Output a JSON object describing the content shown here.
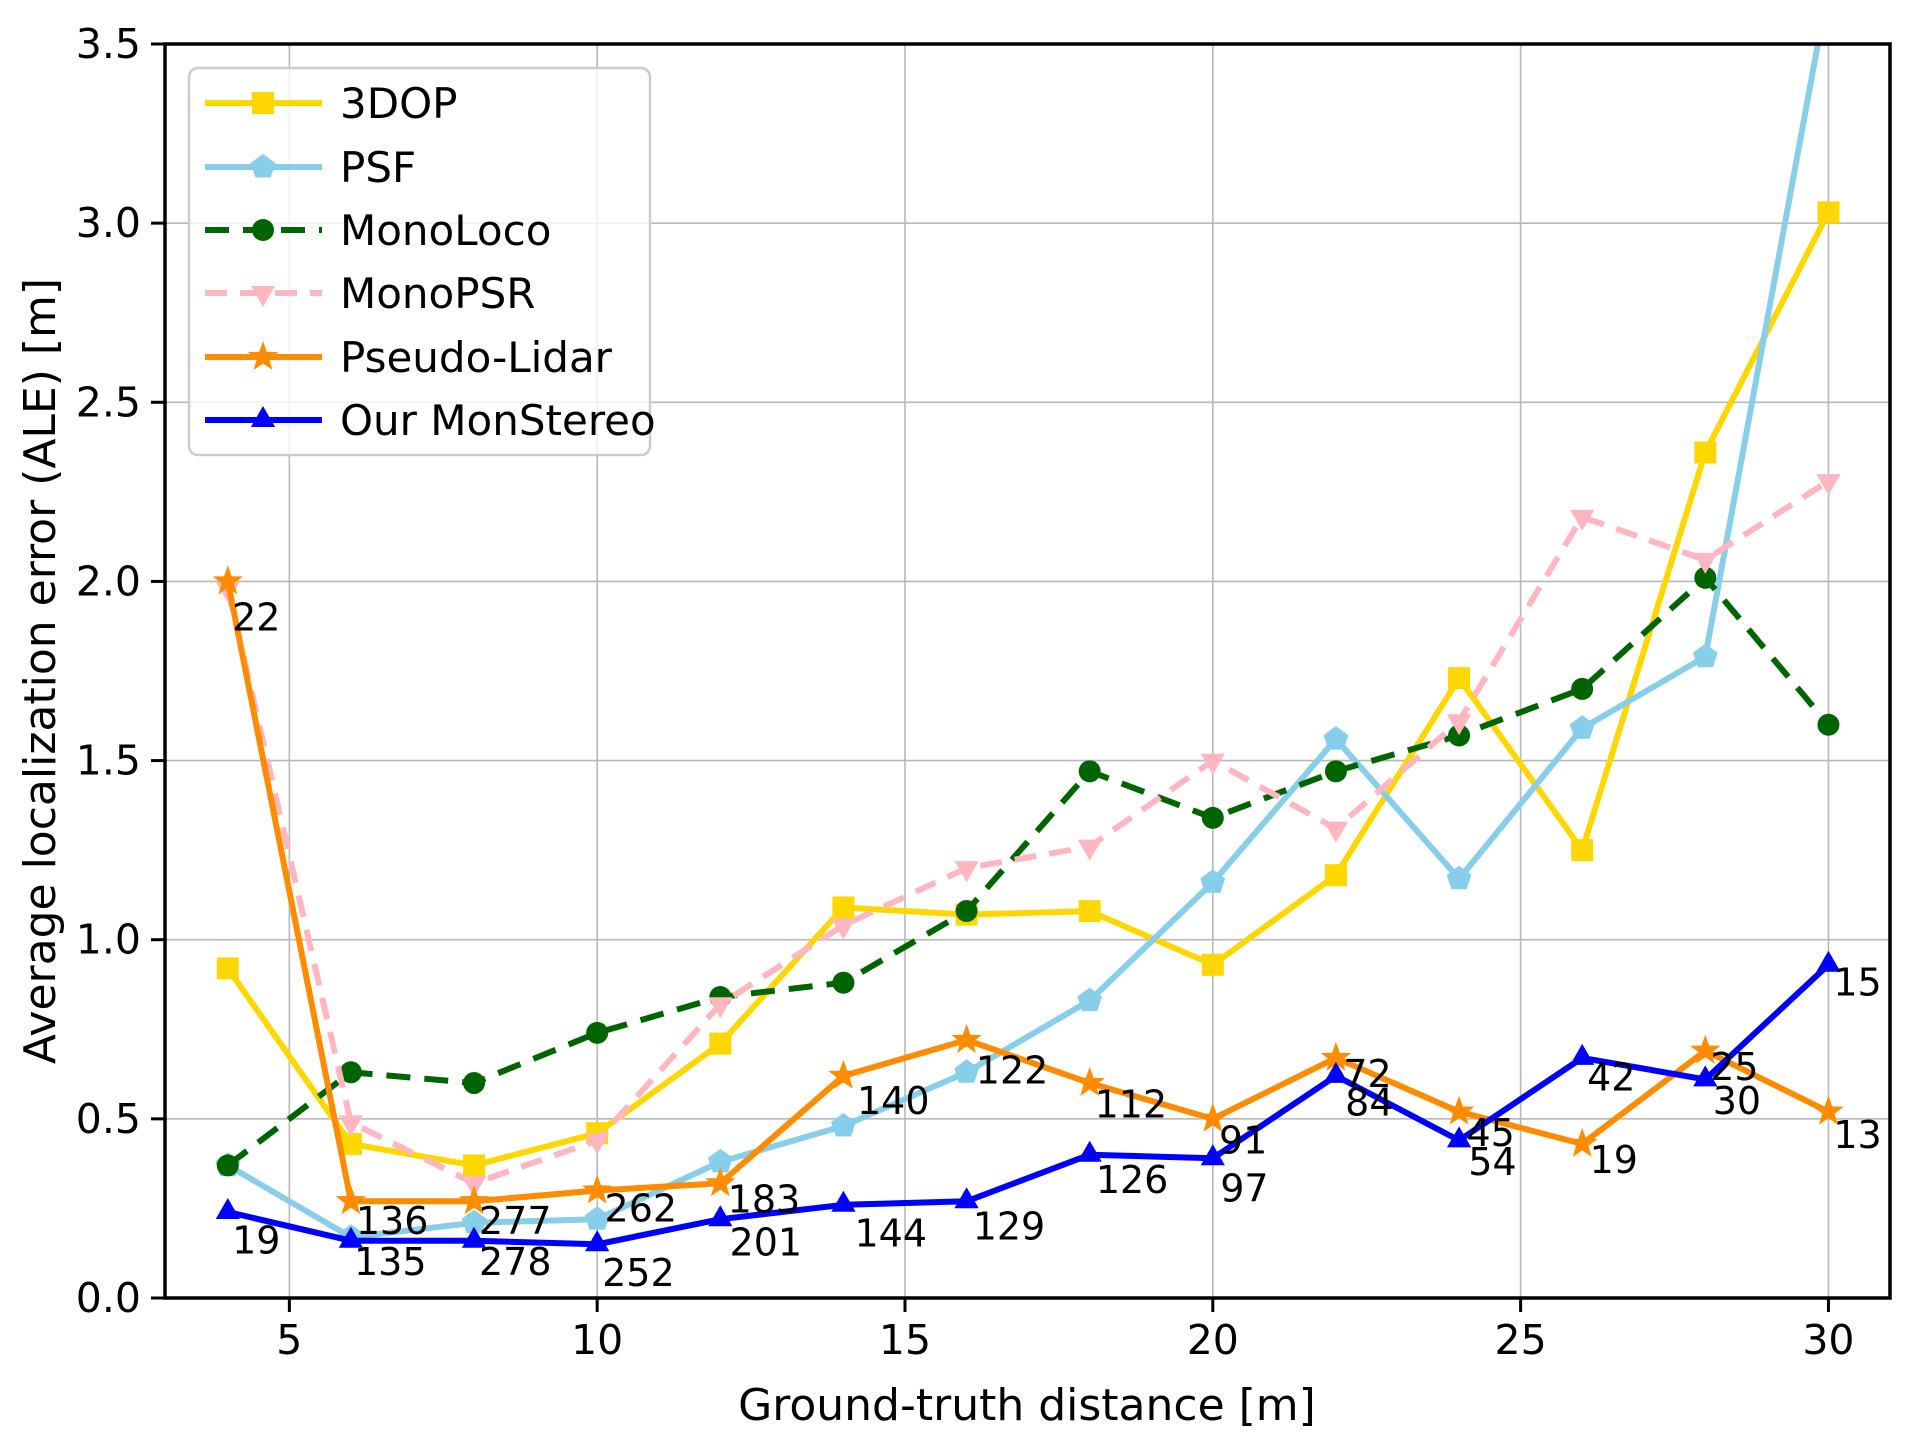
{
  "chart_data": {
    "type": "line",
    "title": "",
    "xlabel": "Ground-truth distance [m]",
    "ylabel": "Average localization error (ALE) [m]",
    "xlim": [
      2.98,
      31.0
    ],
    "ylim": [
      0.0,
      3.5
    ],
    "x_ticks": [
      5,
      10,
      15,
      20,
      25,
      30
    ],
    "y_ticks": [
      "0.0",
      "0.5",
      "1.0",
      "1.5",
      "2.0",
      "2.5",
      "3.0",
      "3.5"
    ],
    "grid": true,
    "grid_color": "#b8b8b8",
    "legend_position": "upper-left",
    "x": [
      4,
      6,
      8,
      10,
      12,
      14,
      16,
      18,
      20,
      22,
      24,
      26,
      28,
      30
    ],
    "series": [
      {
        "name": "3DOP",
        "color": "#FFD700",
        "marker": "square",
        "dash": null,
        "values": [
          0.92,
          0.43,
          0.37,
          0.46,
          0.71,
          1.09,
          1.07,
          1.08,
          0.93,
          1.18,
          1.73,
          1.25,
          2.36,
          3.03
        ]
      },
      {
        "name": "PSF",
        "color": "#87CEEB",
        "marker": "pentagon",
        "dash": null,
        "values": [
          0.37,
          0.17,
          0.21,
          0.22,
          0.38,
          0.48,
          0.63,
          0.83,
          1.16,
          1.56,
          1.17,
          1.59,
          1.79,
          3.66
        ]
      },
      {
        "name": "MonoLoco",
        "color": "#006400",
        "marker": "circle",
        "dash": [
          24,
          14
        ],
        "values": [
          0.37,
          0.63,
          0.6,
          0.74,
          0.84,
          0.88,
          1.08,
          1.47,
          1.34,
          1.47,
          1.57,
          1.7,
          2.01,
          1.6
        ]
      },
      {
        "name": "MonoPSR",
        "color": "#FFB6C1",
        "marker": "triangle-down",
        "dash": [
          22,
          13
        ],
        "values": [
          1.98,
          0.49,
          0.32,
          0.44,
          0.82,
          1.04,
          1.2,
          1.26,
          1.5,
          1.31,
          1.61,
          2.18,
          2.06,
          2.28
        ]
      },
      {
        "name": "Pseudo-Lidar",
        "color": "#FF8C00",
        "marker": "star",
        "dash": null,
        "values": [
          2.0,
          0.27,
          0.27,
          0.3,
          0.32,
          0.62,
          0.72,
          0.6,
          0.5,
          0.67,
          0.52,
          0.43,
          0.69,
          0.52
        ]
      },
      {
        "name": "Our MonStereo",
        "color": "#0000FF",
        "marker": "triangle-up",
        "dash": null,
        "values": [
          0.24,
          0.16,
          0.16,
          0.15,
          0.22,
          0.26,
          0.27,
          0.4,
          0.39,
          0.62,
          0.44,
          0.67,
          0.61,
          0.93
        ]
      }
    ],
    "annotations": [
      {
        "text": "22",
        "x": 4.07,
        "y": 1.9
      },
      {
        "text": "19",
        "x": 4.07,
        "y": 0.16
      },
      {
        "text": "136",
        "x": 6.08,
        "y": 0.215
      },
      {
        "text": "135",
        "x": 6.05,
        "y": 0.1
      },
      {
        "text": "277",
        "x": 8.08,
        "y": 0.215
      },
      {
        "text": "278",
        "x": 8.08,
        "y": 0.1
      },
      {
        "text": "262",
        "x": 10.12,
        "y": 0.25
      },
      {
        "text": "252",
        "x": 10.08,
        "y": 0.07
      },
      {
        "text": "183",
        "x": 12.12,
        "y": 0.275
      },
      {
        "text": "201",
        "x": 12.15,
        "y": 0.155
      },
      {
        "text": "140",
        "x": 14.22,
        "y": 0.55
      },
      {
        "text": "144",
        "x": 14.18,
        "y": 0.18
      },
      {
        "text": "122",
        "x": 16.15,
        "y": 0.635
      },
      {
        "text": "129",
        "x": 16.1,
        "y": 0.2
      },
      {
        "text": "112",
        "x": 18.08,
        "y": 0.54
      },
      {
        "text": "126",
        "x": 18.1,
        "y": 0.33
      },
      {
        "text": "91",
        "x": 20.1,
        "y": 0.44
      },
      {
        "text": "97",
        "x": 20.12,
        "y": 0.305
      },
      {
        "text": "72",
        "x": 22.12,
        "y": 0.625
      },
      {
        "text": "84",
        "x": 22.15,
        "y": 0.545
      },
      {
        "text": "45",
        "x": 24.12,
        "y": 0.46
      },
      {
        "text": "54",
        "x": 24.15,
        "y": 0.38
      },
      {
        "text": "42",
        "x": 26.08,
        "y": 0.615
      },
      {
        "text": "19",
        "x": 26.12,
        "y": 0.385
      },
      {
        "text": "25",
        "x": 28.08,
        "y": 0.645
      },
      {
        "text": "30",
        "x": 28.12,
        "y": 0.55
      },
      {
        "text": "15",
        "x": 30.08,
        "y": 0.88
      },
      {
        "text": "13",
        "x": 30.08,
        "y": 0.455
      }
    ]
  },
  "style": {
    "spine_color": "#000000",
    "legend_border_color": "#cccccc",
    "legend_bg": "rgba(255,255,255,0.8)"
  }
}
